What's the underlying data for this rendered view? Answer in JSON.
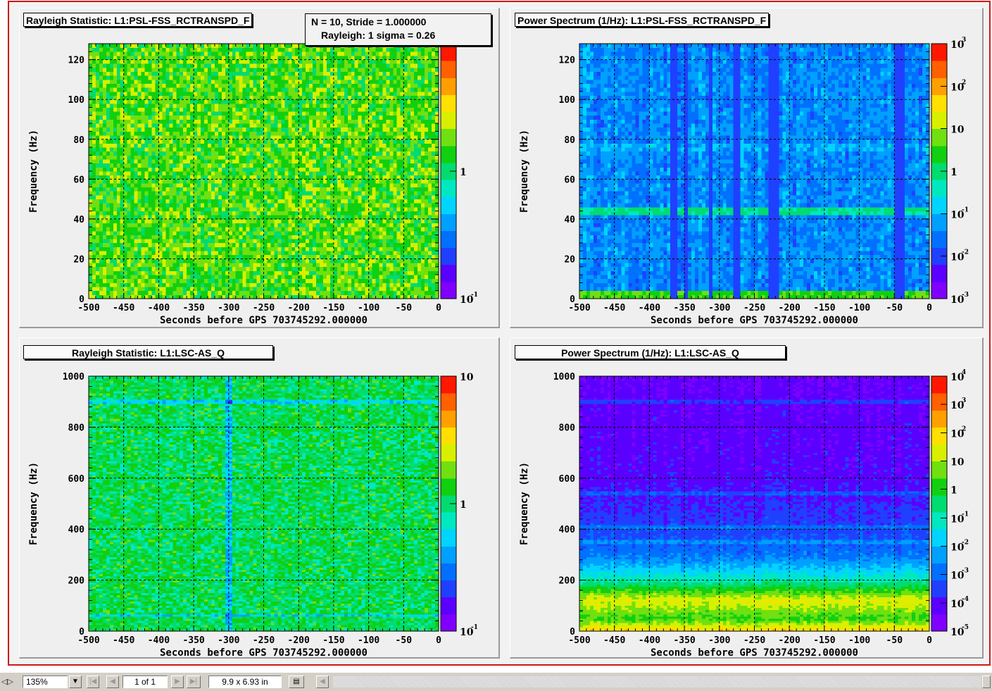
{
  "colors": {
    "palette": [
      "#8000ff",
      "#5a00ff",
      "#2040ff",
      "#0070ff",
      "#00a0ff",
      "#00d4ff",
      "#00e8c0",
      "#00dc70",
      "#10d010",
      "#70e010",
      "#d8f000",
      "#ffe000",
      "#ffa000",
      "#ff6000",
      "#ff1800"
    ],
    "frame_border": "#cc1818"
  },
  "panels": [
    {
      "title": "Rayleigh Statistic:  L1:PSL-FSS_RCTRANSPD_F",
      "stat_box": [
        "N = 10,  Stride = 1.000000",
        "Rayleigh: 1 sigma = 0.26"
      ],
      "ylabel": "Frequency (Hz)",
      "xlabel": "Seconds before GPS 703745292.000000",
      "x_ticks": [
        "-500",
        "-450",
        "-400",
        "-350",
        "-300",
        "-250",
        "-200",
        "-150",
        "-100",
        "-50",
        "0"
      ],
      "y_ticks": [
        "0",
        "20",
        "40",
        "60",
        "80",
        "100",
        "120"
      ],
      "colorbar_labels": [
        {
          "text": "1",
          "exp": "",
          "frac": 0.5
        },
        {
          "text": "10",
          "exp": "-1",
          "frac": 0.0
        }
      ]
    },
    {
      "title": "Power Spectrum (1/Hz):  L1:PSL-FSS_RCTRANSPD_F",
      "ylabel": "Frequency (Hz)",
      "xlabel": "Seconds before GPS 703745292.000000",
      "x_ticks": [
        "-500",
        "-450",
        "-400",
        "-350",
        "-300",
        "-250",
        "-200",
        "-150",
        "-100",
        "-50",
        "0"
      ],
      "y_ticks": [
        "0",
        "20",
        "40",
        "60",
        "80",
        "100",
        "120"
      ],
      "colorbar_labels": [
        {
          "text": "10",
          "exp": "3",
          "frac": 1.0
        },
        {
          "text": "10",
          "exp": "2",
          "frac": 0.833
        },
        {
          "text": "10",
          "exp": "",
          "frac": 0.667
        },
        {
          "text": "1",
          "exp": "",
          "frac": 0.5
        },
        {
          "text": "10",
          "exp": "-1",
          "frac": 0.333
        },
        {
          "text": "10",
          "exp": "-2",
          "frac": 0.167
        },
        {
          "text": "10",
          "exp": "-3",
          "frac": 0.0
        }
      ]
    },
    {
      "title": "Rayleigh Statistic:  L1:LSC-AS_Q",
      "ylabel": "Frequency (Hz)",
      "xlabel": "Seconds before GPS 703745292.000000",
      "x_ticks": [
        "-500",
        "-450",
        "-400",
        "-350",
        "-300",
        "-250",
        "-200",
        "-150",
        "-100",
        "-50",
        "0"
      ],
      "y_ticks": [
        "0",
        "200",
        "400",
        "600",
        "800",
        "1000"
      ],
      "colorbar_labels": [
        {
          "text": "10",
          "exp": "",
          "frac": 1.0
        },
        {
          "text": "1",
          "exp": "",
          "frac": 0.5
        },
        {
          "text": "10",
          "exp": "-1",
          "frac": 0.0
        }
      ]
    },
    {
      "title": "Power Spectrum (1/Hz):  L1:LSC-AS_Q",
      "ylabel": "Frequency (Hz)",
      "xlabel": "Seconds before GPS 703745292.000000",
      "x_ticks": [
        "-500",
        "-450",
        "-400",
        "-350",
        "-300",
        "-250",
        "-200",
        "-150",
        "-100",
        "-50",
        "0"
      ],
      "y_ticks": [
        "0",
        "200",
        "400",
        "600",
        "800",
        "1000"
      ],
      "colorbar_labels": [
        {
          "text": "10",
          "exp": "4",
          "frac": 1.0
        },
        {
          "text": "10",
          "exp": "3",
          "frac": 0.889
        },
        {
          "text": "10",
          "exp": "2",
          "frac": 0.778
        },
        {
          "text": "10",
          "exp": "",
          "frac": 0.667
        },
        {
          "text": "1",
          "exp": "",
          "frac": 0.556
        },
        {
          "text": "10",
          "exp": "-1",
          "frac": 0.444
        },
        {
          "text": "10",
          "exp": "-2",
          "frac": 0.333
        },
        {
          "text": "10",
          "exp": "-3",
          "frac": 0.222
        },
        {
          "text": "10",
          "exp": "-4",
          "frac": 0.111
        },
        {
          "text": "10",
          "exp": "-5",
          "frac": 0.0
        }
      ]
    }
  ],
  "chart_data": [
    {
      "type": "heatmap",
      "title": "Rayleigh Statistic:  L1:PSL-FSS_RCTRANSPD_F",
      "xlabel": "Seconds before GPS 703745292.000000",
      "ylabel": "Frequency (Hz)",
      "xlim": [
        -500,
        0
      ],
      "ylim": [
        0,
        128
      ],
      "color_scale": "log",
      "zlim": [
        0.1,
        10
      ],
      "grid": true,
      "annotation": [
        "N = 10,  Stride = 1.000000",
        "Rayleigh: 1 sigma = 0.26"
      ],
      "values": {
        "typical_level": 1.6,
        "min_level": 1.0,
        "max_level": 2.6
      }
    },
    {
      "type": "heatmap",
      "title": "Power Spectrum (1/Hz):  L1:PSL-FSS_RCTRANSPD_F",
      "xlabel": "Seconds before GPS 703745292.000000",
      "ylabel": "Frequency (Hz)",
      "xlim": [
        -500,
        0
      ],
      "ylim": [
        0,
        128
      ],
      "color_scale": "log",
      "zlim": [
        0.0001,
        2000
      ],
      "grid": true,
      "values": {
        "typical_level": 0.01,
        "band_near_0hz_level": 2,
        "band_near_44hz_level": 0.3,
        "low_power_columns_s": [
          -365,
          -347,
          -312,
          -275,
          -226,
          -222,
          -218,
          -45,
          -40
        ]
      }
    },
    {
      "type": "heatmap",
      "title": "Rayleigh Statistic:  L1:LSC-AS_Q",
      "xlabel": "Seconds before GPS 703745292.000000",
      "ylabel": "Frequency (Hz)",
      "xlim": [
        -500,
        0
      ],
      "ylim": [
        0,
        1000
      ],
      "color_scale": "log",
      "zlim": [
        0.1,
        10
      ],
      "grid": true,
      "values": {
        "typical_level": 1.1,
        "min_level": 0.6,
        "max_level": 1.6,
        "low_column_s": -300,
        "low_line_hz": [
          60,
          900
        ]
      }
    },
    {
      "type": "heatmap",
      "title": "Power Spectrum (1/Hz):  L1:LSC-AS_Q",
      "xlabel": "Seconds before GPS 703745292.000000",
      "ylabel": "Frequency (Hz)",
      "xlim": [
        -500,
        0
      ],
      "ylim": [
        0,
        1000
      ],
      "color_scale": "log",
      "zlim": [
        5e-06,
        20000
      ],
      "grid": true,
      "values": {
        "level_by_frequency_hz": [
          [
            0,
            200
          ],
          [
            50,
            2
          ],
          [
            120,
            40
          ],
          [
            200,
            0.1
          ],
          [
            300,
            0.001
          ],
          [
            400,
            0.0002
          ],
          [
            600,
            5e-05
          ],
          [
            1000,
            3e-05
          ]
        ],
        "line_features_hz": [
          350,
          410,
          540,
          900
        ]
      }
    }
  ],
  "toolbar": {
    "zoom": "135%",
    "page": "1 of 1",
    "page_size": "9.9 x 6.93 in"
  }
}
